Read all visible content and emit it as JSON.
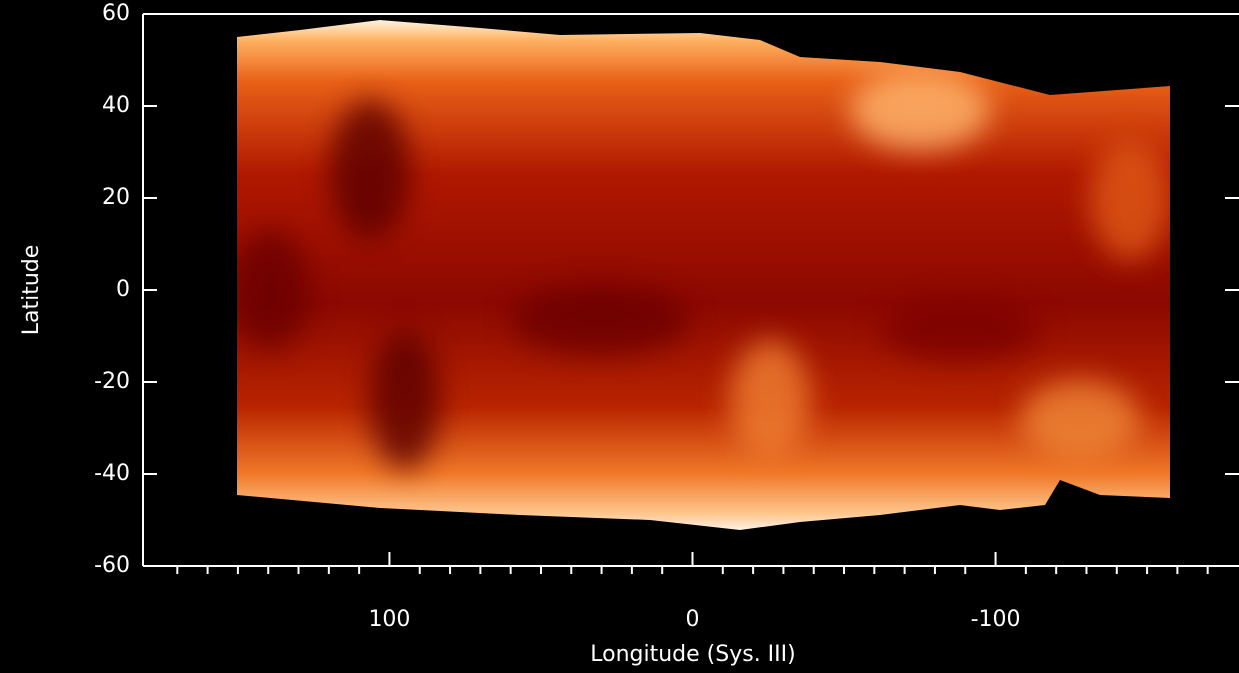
{
  "chart_data": {
    "type": "heatmap",
    "xlabel": "Longitude (Sys. III)",
    "ylabel": "Latitude",
    "xlim": [
      180,
      -180
    ],
    "ylim": [
      -60,
      60
    ],
    "xticks": [
      100,
      0,
      -100
    ],
    "x_minor_ticks": [
      170,
      160,
      150,
      140,
      130,
      120,
      110,
      90,
      80,
      70,
      60,
      50,
      40,
      30,
      20,
      10,
      -10,
      -20,
      -30,
      -40,
      -50,
      -60,
      -70,
      -80,
      -90,
      -110,
      -120,
      -130,
      -140,
      -150,
      -160,
      -170
    ],
    "yticks": [
      -60,
      -40,
      -20,
      0,
      20,
      40,
      60
    ]
  }
}
